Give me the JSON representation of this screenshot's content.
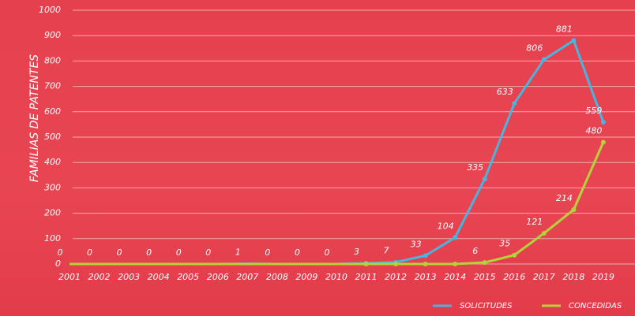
{
  "chart_data": {
    "type": "line",
    "ylabel": "FAMILIAS DE PATENTES",
    "categories": [
      "2001",
      "2002",
      "2003",
      "2004",
      "2005",
      "2006",
      "2007",
      "2008",
      "2009",
      "2010",
      "2011",
      "2012",
      "2013",
      "2014",
      "2015",
      "2016",
      "2017",
      "2018",
      "2019"
    ],
    "series": [
      {
        "name": "SOLICITUDES",
        "color": "#4ab3de",
        "values": [
          0,
          0,
          0,
          0,
          0,
          0,
          1,
          0,
          0,
          0,
          3,
          7,
          33,
          104,
          335,
          633,
          806,
          881,
          559
        ]
      },
      {
        "name": "CONCEDIDAS",
        "color": "#b3d33a",
        "values": [
          0,
          0,
          0,
          0,
          0,
          0,
          0,
          0,
          0,
          0,
          0,
          0,
          0,
          0,
          6,
          35,
          121,
          214,
          480
        ],
        "value_labels": [
          null,
          null,
          null,
          null,
          null,
          null,
          null,
          null,
          null,
          null,
          null,
          null,
          null,
          null,
          "6",
          "35",
          "121",
          "214",
          "480"
        ]
      }
    ],
    "ylim": [
      0,
      1000
    ],
    "yticks": [
      0,
      100,
      200,
      300,
      400,
      500,
      600,
      700,
      800,
      900,
      1000
    ],
    "grid": true,
    "legend": "bottom-right"
  }
}
